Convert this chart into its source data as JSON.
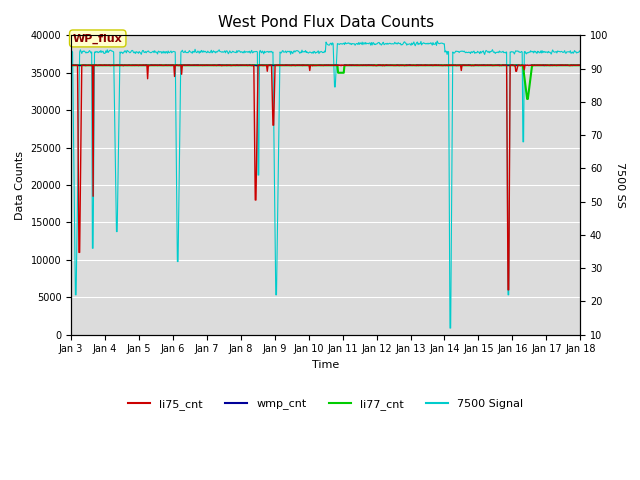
{
  "title": "West Pond Flux Data Counts",
  "xlabel": "Time",
  "ylabel_left": "Data Counts",
  "ylabel_right": "7500 SS",
  "ylim_left": [
    0,
    40000
  ],
  "ylim_right": [
    10,
    100
  ],
  "fig_bg_color": "#ffffff",
  "plot_bg_color": "#dcdcdc",
  "annotation_text": "WP_flux",
  "annotation_bg": "#ffffcc",
  "annotation_border": "#cccc00",
  "annotation_text_color": "#880000",
  "legend_entries": [
    "li75_cnt",
    "wmp_cnt",
    "li77_cnt",
    "7500 Signal"
  ],
  "legend_colors": [
    "#cc0000",
    "#000099",
    "#00cc00",
    "#00cccc"
  ],
  "x_tick_labels": [
    "Jan 3",
    "Jan 4",
    "Jan 5",
    "Jan 6",
    "Jan 7",
    "Jan 8",
    "Jan 9",
    "Jan 10",
    "Jan 11",
    "Jan 12",
    "Jan 13",
    "Jan 14",
    "Jan 15",
    "Jan 16",
    "Jan 17",
    "Jan 18"
  ],
  "x_tick_positions": [
    3,
    4,
    5,
    6,
    7,
    8,
    9,
    10,
    11,
    12,
    13,
    14,
    15,
    16,
    17,
    18
  ],
  "yticks_left": [
    0,
    5000,
    10000,
    15000,
    20000,
    25000,
    30000,
    35000,
    40000
  ],
  "yticks_right": [
    10,
    20,
    30,
    40,
    50,
    60,
    70,
    80,
    90,
    100
  ],
  "grid_color": "#f0f0f0",
  "title_fontsize": 11,
  "label_fontsize": 8,
  "tick_fontsize": 7
}
